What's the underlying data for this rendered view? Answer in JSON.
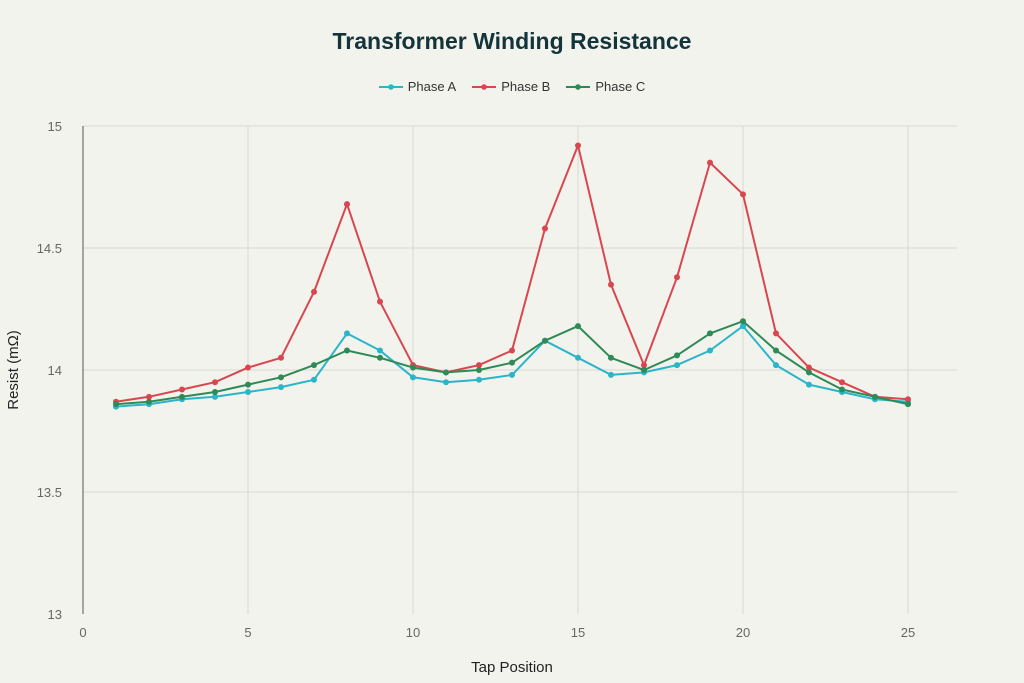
{
  "title": "Transformer Winding Resistance",
  "xaxis": {
    "label": "Tap Position",
    "ticks": [
      0,
      5,
      10,
      15,
      20,
      25
    ]
  },
  "yaxis": {
    "label": "Resist (mΩ)",
    "ticks": [
      13,
      13.5,
      14,
      14.5,
      15
    ]
  },
  "legend": [
    {
      "name": "Phase A",
      "color": "#2bb5c8"
    },
    {
      "name": "Phase B",
      "color": "#d8474f"
    },
    {
      "name": "Phase C",
      "color": "#2e8a57"
    }
  ],
  "chart_data": {
    "type": "line",
    "title": "Transformer Winding Resistance",
    "xlabel": "Tap Position",
    "ylabel": "Resist (mΩ)",
    "xlim": [
      0,
      25
    ],
    "ylim": [
      13,
      15
    ],
    "grid": true,
    "legend_position": "top",
    "x": [
      1,
      2,
      3,
      4,
      5,
      6,
      7,
      8,
      9,
      10,
      11,
      12,
      13,
      14,
      15,
      16,
      17,
      18,
      19,
      20,
      21,
      22,
      23,
      24,
      25
    ],
    "series": [
      {
        "name": "Phase A",
        "color": "#2bb5c8",
        "values": [
          13.85,
          13.86,
          13.88,
          13.89,
          13.91,
          13.93,
          13.96,
          14.15,
          14.08,
          13.97,
          13.95,
          13.96,
          13.98,
          14.12,
          14.05,
          13.98,
          13.99,
          14.02,
          14.08,
          14.18,
          14.02,
          13.94,
          13.91,
          13.88,
          13.87
        ]
      },
      {
        "name": "Phase B",
        "color": "#d8474f",
        "values": [
          13.87,
          13.89,
          13.92,
          13.95,
          14.01,
          14.05,
          14.32,
          14.68,
          14.28,
          14.02,
          13.99,
          14.02,
          14.08,
          14.58,
          14.92,
          14.35,
          14.02,
          14.38,
          14.85,
          14.72,
          14.15,
          14.01,
          13.95,
          13.89,
          13.88
        ]
      },
      {
        "name": "Phase C",
        "color": "#2e8a57",
        "values": [
          13.86,
          13.87,
          13.89,
          13.91,
          13.94,
          13.97,
          14.02,
          14.08,
          14.05,
          14.01,
          13.99,
          14.0,
          14.03,
          14.12,
          14.18,
          14.05,
          14.0,
          14.06,
          14.15,
          14.2,
          14.08,
          13.99,
          13.92,
          13.89,
          13.86
        ]
      }
    ]
  }
}
